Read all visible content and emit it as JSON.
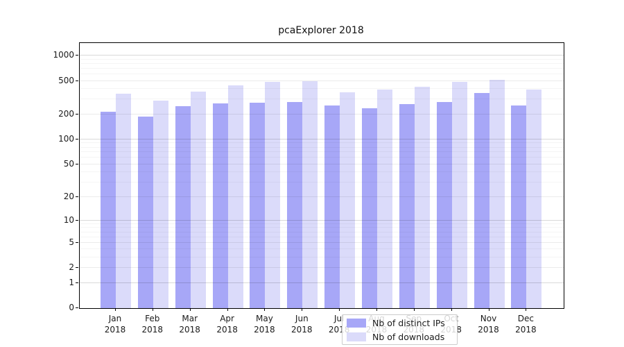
{
  "title": "pcaExplorer 2018",
  "chart_data": {
    "type": "bar",
    "title": "pcaExplorer 2018",
    "xlabel": "",
    "ylabel": "",
    "x_month_labels": [
      "Jan",
      "Feb",
      "Mar",
      "Apr",
      "May",
      "Jun",
      "Jul",
      "Aug",
      "Sep",
      "Oct",
      "Nov",
      "Dec"
    ],
    "x_year_label": "2018",
    "series": [
      {
        "name": "Nb of distinct IPs",
        "color": "#a7a7f7",
        "values": [
          215,
          186,
          251,
          272,
          274,
          280,
          256,
          237,
          266,
          278,
          356,
          253
        ]
      },
      {
        "name": "Nb of downloads",
        "color": "#dbdbfa",
        "values": [
          355,
          289,
          373,
          445,
          486,
          498,
          365,
          392,
          428,
          484,
          515,
          396
        ]
      }
    ],
    "y_scale": "log10(1+v)",
    "y_ticks": [
      0,
      1,
      2,
      5,
      10,
      20,
      50,
      100,
      200,
      500,
      1000
    ],
    "y_minor_gridlines": [
      3,
      4,
      6,
      7,
      8,
      9,
      30,
      40,
      60,
      70,
      80,
      90,
      300,
      400,
      600,
      700,
      800,
      900
    ],
    "y_decade_ticks": [
      1,
      10,
      100,
      1000
    ],
    "ylim_top_value": 1400,
    "grid": true,
    "legend_position": "inside-bottom-center"
  }
}
